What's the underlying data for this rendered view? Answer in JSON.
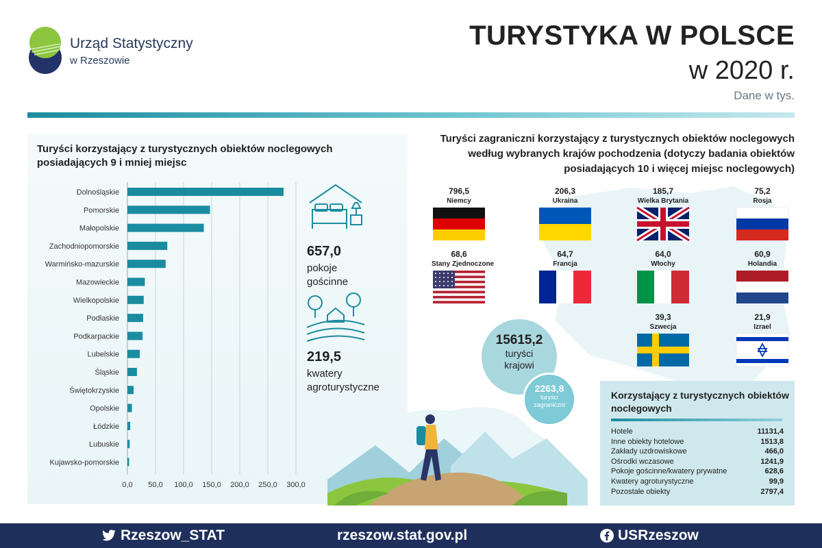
{
  "header": {
    "logo_name": "Urząd Statystyczny",
    "logo_sub": "w Rzeszowie",
    "title": "TURYSTYKA W POLSCE",
    "year": "w 2020 r.",
    "units": "Dane w tys."
  },
  "colors": {
    "bar": "#1b8ca0",
    "footer": "#1f2f5c",
    "accent_light": "#a9d7de"
  },
  "left": {
    "title": "Turyści korzystający z turystycznych obiektów noclegowych posiadających 9 i mniej miejsc",
    "stat1": {
      "value": "657,0",
      "label_line1": "pokoje",
      "label_line2": "gościnne",
      "icon": "bed-icon"
    },
    "stat2": {
      "value": "219,5",
      "label_line1": "kwatery",
      "label_line2": "agroturystyczne",
      "icon": "farm-icon"
    }
  },
  "chart_data": {
    "type": "bar",
    "orientation": "horizontal",
    "title": "Turyści korzystający z turystycznych obiektów noclegowych posiadających 9 i mniej miejsc",
    "categories": [
      "Dolnośląskie",
      "Pomorskie",
      "Małopolskie",
      "Zachodniopomorskie",
      "Warmińsko-mazurskie",
      "Mazowieckie",
      "Wielkopolskie",
      "Podlaskie",
      "Podkarpackie",
      "Lubelskie",
      "Śląskie",
      "Świętokrzyskie",
      "Opolskie",
      "Łódzkie",
      "Lubuskie",
      "Kujawsko-pomorskie"
    ],
    "values": [
      278,
      147,
      136,
      71,
      68,
      31,
      29,
      28,
      27,
      22,
      17,
      11,
      8,
      5,
      4,
      3
    ],
    "xlim": [
      0,
      300
    ],
    "x_ticks": [
      "0,0",
      "50,0",
      "100,0",
      "150,0",
      "200,0",
      "250,0",
      "300,0"
    ],
    "grid": "vertical"
  },
  "right": {
    "title_line1": "Turyści zagraniczni korzystający z turystycznych obiektów noclegowych",
    "title_line2": "według wybranych krajów pochodzenia (dotyczy badania obiektów",
    "title_line3": "posiadających 10 i więcej miejsc noclegowych)",
    "countries": [
      {
        "value": "796,5",
        "name": "Niemcy",
        "flag": "germany-flag"
      },
      {
        "value": "206,3",
        "name": "Ukraina",
        "flag": "ukraine-flag"
      },
      {
        "value": "185,7",
        "name": "Wielka Brytania",
        "flag": "uk-flag"
      },
      {
        "value": "75,2",
        "name": "Rosja",
        "flag": "russia-flag"
      },
      {
        "value": "68,6",
        "name": "Stany Zjednoczone",
        "flag": "usa-flag"
      },
      {
        "value": "64,7",
        "name": "Francja",
        "flag": "france-flag"
      },
      {
        "value": "64,0",
        "name": "Włochy",
        "flag": "italy-flag"
      },
      {
        "value": "60,9",
        "name": "Holandia",
        "flag": "netherlands-flag"
      },
      {
        "value": "39,3",
        "name": "Szwecja",
        "flag": "sweden-flag"
      },
      {
        "value": "21,9",
        "name": "Izrael",
        "flag": "israel-flag"
      }
    ],
    "domestic": {
      "value": "15615,2",
      "label_line1": "turyści",
      "label_line2": "krajowi"
    },
    "foreign": {
      "value": "2263,8",
      "label_line1": "turyści",
      "label_line2": "zagraniczni"
    }
  },
  "table": {
    "title": "Korzystający z turystycznych obiektów noclegowych",
    "rows": [
      {
        "label": "Hotele",
        "value": "11131,4"
      },
      {
        "label": "Inne obiekty hotelowe",
        "value": "1513,8"
      },
      {
        "label": "Zakłady uzdrowiskowe",
        "value": "466,0"
      },
      {
        "label": "Ośrodki wczasowe",
        "value": "1241,9"
      },
      {
        "label": "Pokoje gościnne/kwatery prywatne",
        "value": "628,6"
      },
      {
        "label": "Kwatery agroturystyczne",
        "value": "99,9"
      },
      {
        "label": "Pozostałe obiekty",
        "value": "2797,4"
      }
    ]
  },
  "footer": {
    "twitter": "Rzeszow_STAT",
    "website": "rzeszow.stat.gov.pl",
    "facebook": "USRzeszow"
  }
}
